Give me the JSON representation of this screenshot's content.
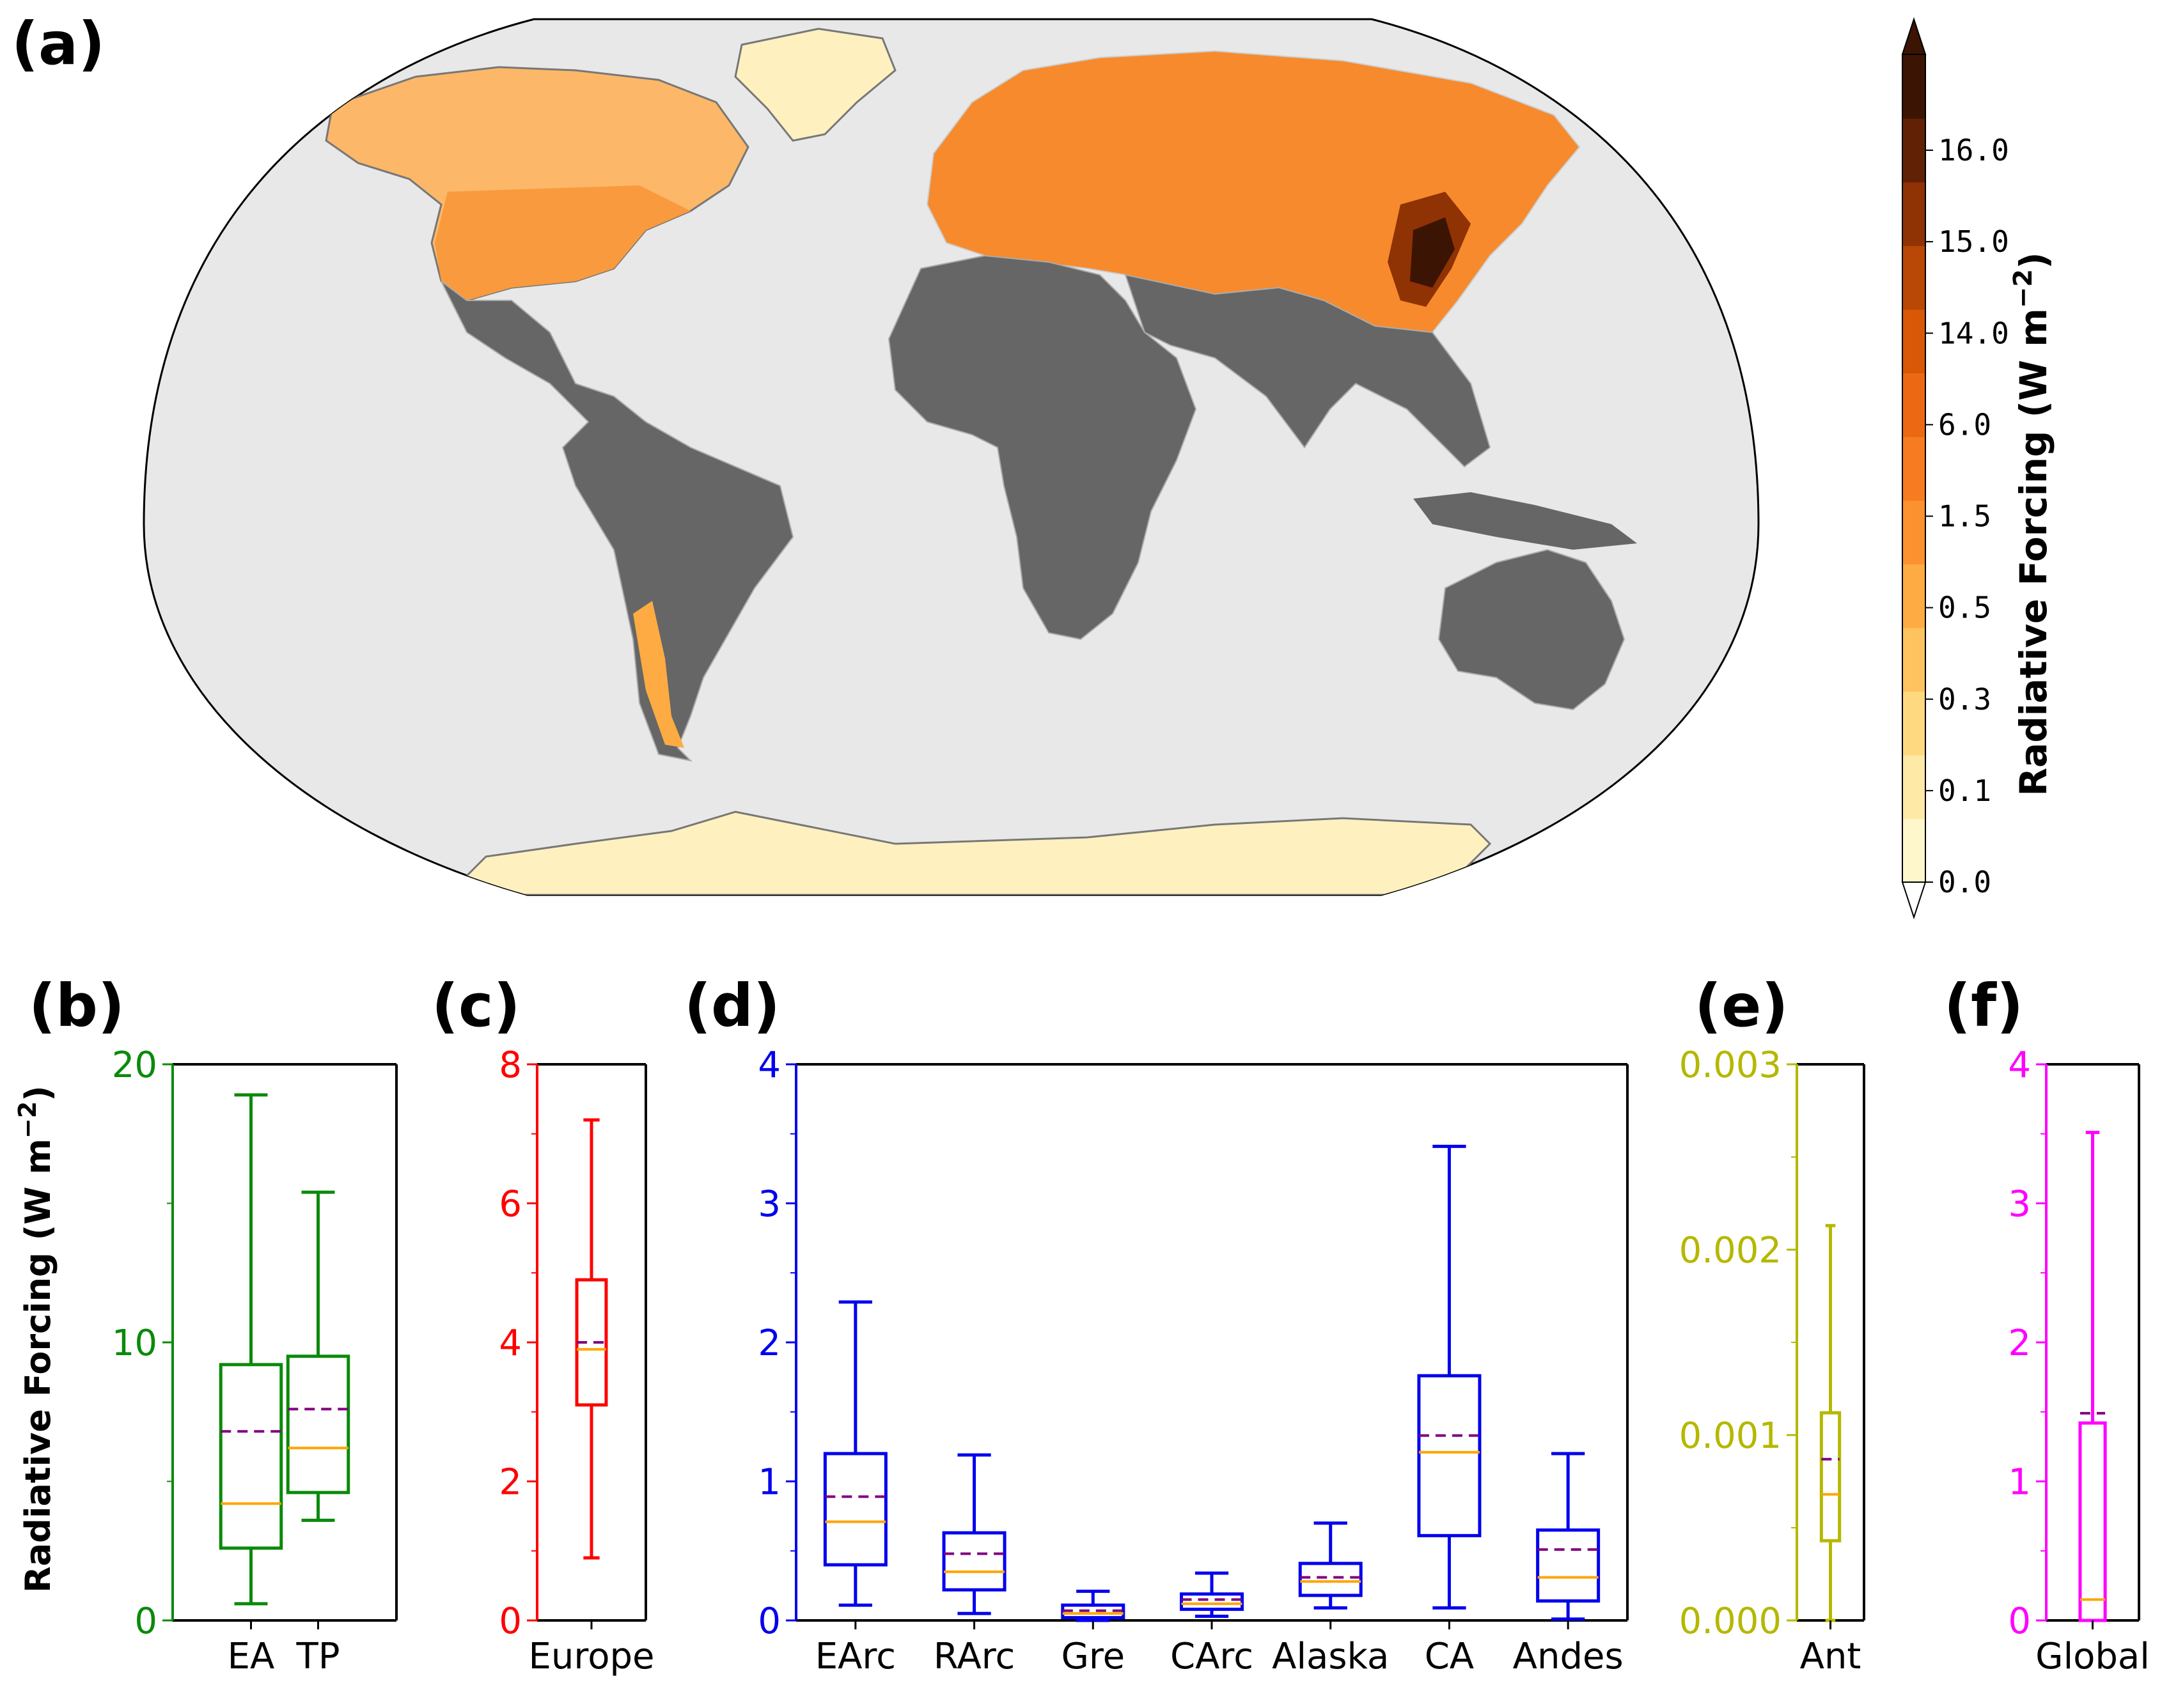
{
  "figure": {
    "panel_labels": [
      "(a)",
      "(b)",
      "(c)",
      "(d)",
      "(e)",
      "(f)"
    ],
    "map_panel": {
      "colorbar": {
        "title": "Radiative Forcing (W m",
        "title_sup": "−2",
        "title_end": ")",
        "tick_labels": [
          "0.0",
          "0.1",
          "0.3",
          "0.5",
          "1.5",
          "6.0",
          "14.0",
          "15.0",
          "16.0"
        ],
        "colors": [
          "#fff7cc",
          "#fee9a6",
          "#fed980",
          "#fec25e",
          "#fdab42",
          "#fc9130",
          "#f77b20",
          "#ec6813",
          "#d85808",
          "#b94705",
          "#8f3204",
          "#602104",
          "#3c1404"
        ]
      }
    },
    "box_ylabel": "Radiative Forcing (W m",
    "box_ylabel_sup": "−2",
    "box_ylabel_end": ")"
  },
  "chart_data": [
    {
      "type": "box",
      "panel": "(b)",
      "color": "#0a8a0a",
      "ylim": [
        0,
        20
      ],
      "ytick_labels": [
        "0",
        "10",
        "20"
      ],
      "ylabel": "Radiative Forcing (W m−2)",
      "categories": [
        "EA",
        "TP"
      ],
      "boxes": [
        {
          "whisker_low": 0.6,
          "q1": 2.6,
          "median": 4.2,
          "mean": 6.8,
          "q3": 9.2,
          "whisker_high": 18.9
        },
        {
          "whisker_low": 3.6,
          "q1": 4.6,
          "median": 6.2,
          "mean": 7.6,
          "q3": 9.5,
          "whisker_high": 15.4
        }
      ]
    },
    {
      "type": "box",
      "panel": "(c)",
      "color": "#ff0000",
      "ylim": [
        0,
        8
      ],
      "ytick_labels": [
        "0",
        "2",
        "4",
        "6",
        "8"
      ],
      "categories": [
        "Europe"
      ],
      "boxes": [
        {
          "whisker_low": 0.9,
          "q1": 3.1,
          "median": 3.9,
          "mean": 4.0,
          "q3": 4.9,
          "whisker_high": 7.2
        }
      ]
    },
    {
      "type": "box",
      "panel": "(d)",
      "color": "#0000ee",
      "ylim": [
        0,
        4
      ],
      "ytick_labels": [
        "0",
        "1",
        "2",
        "3",
        "4"
      ],
      "categories": [
        "EArc",
        "RArc",
        "Gre",
        "CArc",
        "Alaska",
        "CA",
        "Andes"
      ],
      "boxes": [
        {
          "whisker_low": 0.11,
          "q1": 0.4,
          "median": 0.71,
          "mean": 0.89,
          "q3": 1.2,
          "whisker_high": 2.29
        },
        {
          "whisker_low": 0.05,
          "q1": 0.22,
          "median": 0.35,
          "mean": 0.48,
          "q3": 0.63,
          "whisker_high": 1.19
        },
        {
          "whisker_low": 0.0,
          "q1": 0.02,
          "median": 0.05,
          "mean": 0.07,
          "q3": 0.11,
          "whisker_high": 0.21
        },
        {
          "whisker_low": 0.03,
          "q1": 0.08,
          "median": 0.12,
          "mean": 0.15,
          "q3": 0.19,
          "whisker_high": 0.34
        },
        {
          "whisker_low": 0.09,
          "q1": 0.18,
          "median": 0.28,
          "mean": 0.31,
          "q3": 0.41,
          "whisker_high": 0.7
        },
        {
          "whisker_low": 0.09,
          "q1": 0.61,
          "median": 1.21,
          "mean": 1.33,
          "q3": 1.76,
          "whisker_high": 3.41
        },
        {
          "whisker_low": 0.01,
          "q1": 0.14,
          "median": 0.31,
          "mean": 0.51,
          "q3": 0.65,
          "whisker_high": 1.2
        }
      ]
    },
    {
      "type": "box",
      "panel": "(e)",
      "color": "#b5b800",
      "ylim": [
        0,
        0.003
      ],
      "ytick_labels": [
        "0.000",
        "0.001",
        "0.002",
        "0.003"
      ],
      "categories": [
        "Ant"
      ],
      "boxes": [
        {
          "whisker_low": 0.0,
          "q1": 0.00043,
          "median": 0.00068,
          "mean": 0.00087,
          "q3": 0.00112,
          "whisker_high": 0.00213
        }
      ]
    },
    {
      "type": "box",
      "panel": "(f)",
      "color": "#ff00ff",
      "ylim": [
        0,
        4
      ],
      "ytick_labels": [
        "0",
        "1",
        "2",
        "3",
        "4"
      ],
      "categories": [
        "Global"
      ],
      "boxes": [
        {
          "whisker_low": 0.0,
          "q1": 0.0,
          "median": 0.15,
          "mean": 1.49,
          "q3": 1.42,
          "whisker_high": 3.51
        }
      ]
    }
  ]
}
